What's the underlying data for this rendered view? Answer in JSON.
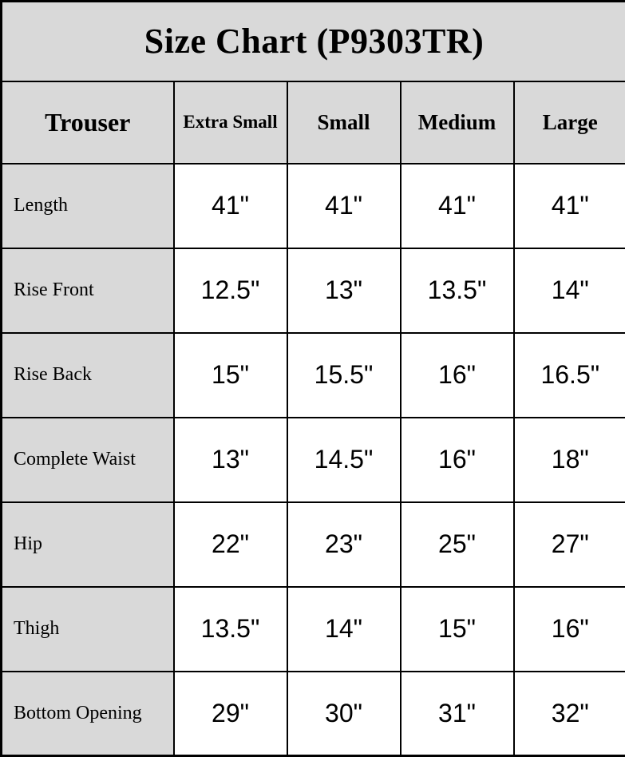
{
  "title": "Size Chart (P9303TR)",
  "table": {
    "corner_label": "Trouser",
    "columns": [
      "Extra Small",
      "Small",
      "Medium",
      "Large"
    ],
    "rows": [
      {
        "label": "Length",
        "values": [
          "41\"",
          "41\"",
          "41\"",
          "41\""
        ]
      },
      {
        "label": "Rise Front",
        "values": [
          "12.5\"",
          "13\"",
          "13.5\"",
          "14\""
        ]
      },
      {
        "label": "Rise Back",
        "values": [
          "15\"",
          "15.5\"",
          "16\"",
          "16.5\""
        ]
      },
      {
        "label": "Complete Waist",
        "values": [
          "13\"",
          "14.5\"",
          "16\"",
          "18\""
        ]
      },
      {
        "label": "Hip",
        "values": [
          "22\"",
          "23\"",
          "25\"",
          "27\""
        ]
      },
      {
        "label": "Thigh",
        "values": [
          "13.5\"",
          "14\"",
          "15\"",
          "16\""
        ]
      },
      {
        "label": "Bottom Opening",
        "values": [
          "29\"",
          "30\"",
          "31\"",
          "32\""
        ]
      }
    ]
  },
  "colors": {
    "header_bg": "#d9d9d9",
    "cell_bg": "#ffffff",
    "border": "#000000",
    "text": "#000000"
  },
  "chart_data": {
    "type": "table",
    "title": "Size Chart (P9303TR)",
    "columns": [
      "Trouser",
      "Extra Small",
      "Small",
      "Medium",
      "Large"
    ],
    "rows": [
      [
        "Length",
        "41\"",
        "41\"",
        "41\"",
        "41\""
      ],
      [
        "Rise Front",
        "12.5\"",
        "13\"",
        "13.5\"",
        "14\""
      ],
      [
        "Rise Back",
        "15\"",
        "15.5\"",
        "16\"",
        "16.5\""
      ],
      [
        "Complete Waist",
        "13\"",
        "14.5\"",
        "16\"",
        "18\""
      ],
      [
        "Hip",
        "22\"",
        "23\"",
        "25\"",
        "27\""
      ],
      [
        "Thigh",
        "13.5\"",
        "14\"",
        "15\"",
        "16\""
      ],
      [
        "Bottom Opening",
        "29\"",
        "30\"",
        "31\"",
        "32\""
      ]
    ],
    "units": "inches"
  }
}
